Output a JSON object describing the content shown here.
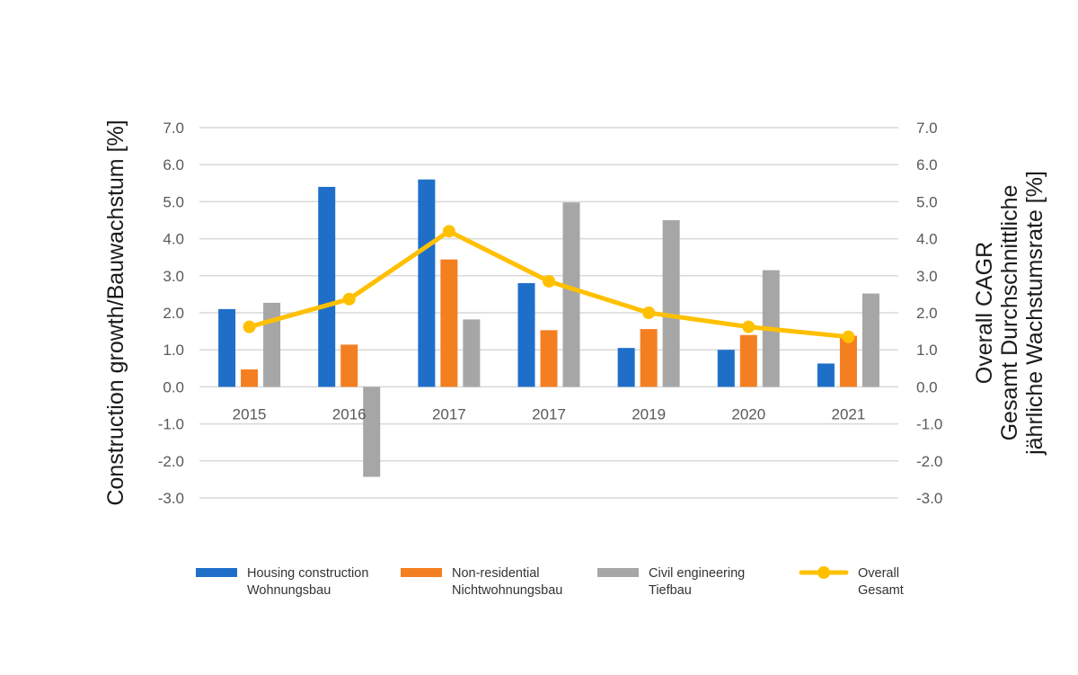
{
  "chart_data": {
    "type": "bar",
    "categories": [
      "2015",
      "2016",
      "2017",
      "2017",
      "2019",
      "2020",
      "2021"
    ],
    "series": [
      {
        "name": "Housing construction\nWohnungsbau",
        "type": "bar",
        "axis": "left",
        "color": "#1f6fc9",
        "values": [
          2.1,
          5.4,
          5.6,
          2.8,
          1.05,
          1.0,
          0.63
        ]
      },
      {
        "name": "Non-residential\nNichtwohnungsbau",
        "type": "bar",
        "axis": "left",
        "color": "#f47f21",
        "values": [
          0.47,
          1.14,
          3.44,
          1.53,
          1.56,
          1.4,
          1.38
        ]
      },
      {
        "name": "Civil engineering\nTiefbau",
        "type": "bar",
        "axis": "left",
        "color": "#a6a6a6",
        "values": [
          2.27,
          -2.43,
          1.82,
          4.98,
          4.5,
          3.15,
          2.52
        ]
      },
      {
        "name": "Overall\nGesamt",
        "type": "line",
        "axis": "right",
        "color": "#ffc000",
        "values": [
          1.62,
          2.37,
          4.2,
          2.85,
          2.0,
          1.62,
          1.35
        ]
      }
    ],
    "ylabel": "Construction growth/Bauwachstum [%]",
    "y2label": [
      "Overall CAGR",
      "Gesamt Durchschnittliche",
      "jährliche Wachstumsrate [%]"
    ],
    "ylim": [
      -3.0,
      7.0
    ],
    "y2lim": [
      -3.0,
      7.0
    ],
    "yticks": [
      "7.0",
      "6.0",
      "5.0",
      "4.0",
      "3.0",
      "2.0",
      "1.0",
      "0.0",
      "-1.0",
      "-2.0",
      "-3.0"
    ],
    "grid": true,
    "legend_position": "bottom"
  }
}
